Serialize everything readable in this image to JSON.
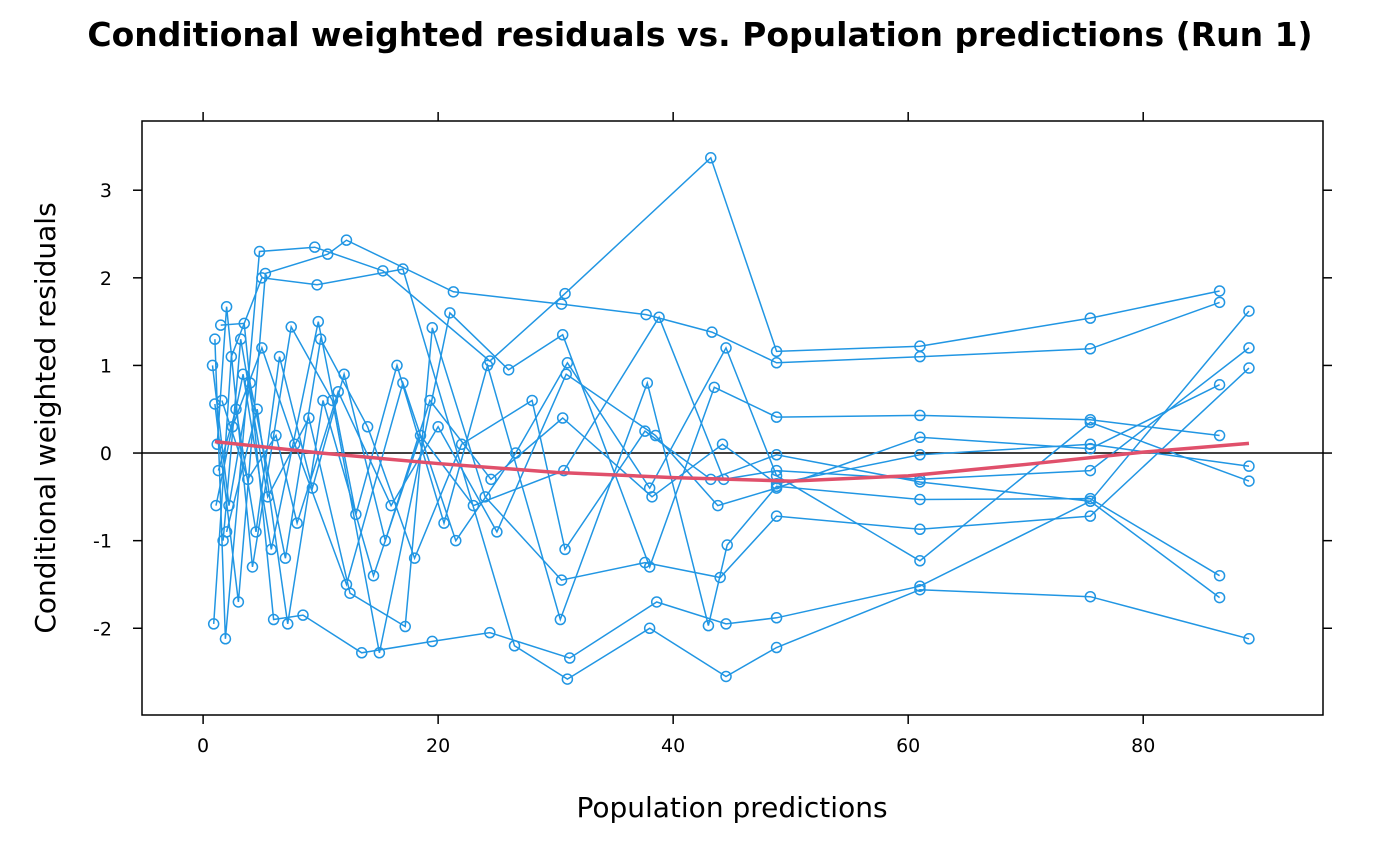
{
  "chart_data": {
    "type": "scatter",
    "title": "Conditional weighted residuals vs. Population predictions (Run 1)",
    "xlabel": "Population predictions",
    "ylabel": "Conditional weighted residuals",
    "xlim": [
      -5.2,
      95.3
    ],
    "ylim": [
      -2.99,
      3.79
    ],
    "xticks": [
      0,
      20,
      40,
      60,
      80
    ],
    "yticks": [
      -2,
      -1,
      0,
      1,
      2,
      3
    ],
    "grid": false,
    "reference_line_y": 0,
    "colors": {
      "points": "#2196e3",
      "smooth": "#e0506b",
      "reference": "#000000"
    },
    "series": [
      {
        "x": [
          1,
          1.9,
          4.8,
          9.5,
          15.3,
          24.4,
          30.8,
          43.2,
          48.8,
          61,
          75.5,
          86.5
        ],
        "y": [
          1.3,
          -2.12,
          2.3,
          2.35,
          2.08,
          1.05,
          1.82,
          3.37,
          1.16,
          1.22,
          1.54,
          1.85
        ]
      },
      {
        "x": [
          0.9,
          2.4,
          5,
          9.7,
          17,
          26.5,
          31,
          38,
          44.5,
          48.8,
          61,
          75.5,
          89
        ],
        "y": [
          -1.95,
          1.1,
          2.0,
          1.92,
          2.1,
          -2.2,
          -2.58,
          -2.0,
          -2.55,
          -2.22,
          -1.56,
          -1.64,
          -2.12
        ]
      },
      {
        "x": [
          1,
          3,
          5.3,
          10.6,
          12.2,
          21.3,
          30.5,
          37.7,
          43.3,
          48.8,
          61,
          75.5,
          86.5
        ],
        "y": [
          0.56,
          -1.7,
          2.05,
          2.27,
          2.43,
          1.84,
          1.7,
          1.58,
          1.38,
          1.03,
          1.1,
          1.19,
          1.72
        ]
      },
      {
        "x": [
          1.5,
          3.5,
          6,
          8.5,
          13.5,
          19.5,
          24.4,
          31.2,
          38.6,
          44.5,
          48.8,
          61,
          75.5,
          89
        ],
        "y": [
          1.46,
          1.48,
          -1.9,
          -1.85,
          -2.28,
          -2.15,
          -2.05,
          -2.34,
          -1.7,
          -1.95,
          -1.88,
          -1.52,
          -0.55,
          1.62
        ]
      },
      {
        "x": [
          1.2,
          2,
          4.2,
          7.5,
          11,
          15,
          21,
          26,
          30.6,
          38,
          43.5,
          48.8,
          61,
          75.5,
          86.5
        ],
        "y": [
          0.1,
          1.67,
          -1.3,
          1.44,
          0.6,
          -2.28,
          1.6,
          0.95,
          1.35,
          -1.3,
          0.75,
          0.41,
          0.43,
          0.38,
          0.2
        ]
      },
      {
        "x": [
          1.7,
          3.2,
          5.5,
          9,
          12.5,
          17.2,
          19.5,
          24,
          30.5,
          37.6,
          44,
          48.8,
          61,
          75.5,
          89
        ],
        "y": [
          -1.0,
          1.3,
          -0.5,
          0.4,
          -1.6,
          -1.98,
          1.43,
          -0.5,
          -1.45,
          -1.25,
          -1.42,
          -0.72,
          -0.87,
          -0.72,
          0.97
        ]
      },
      {
        "x": [
          0.8,
          2.2,
          4,
          7,
          10,
          14,
          18,
          22,
          28,
          30.8,
          37.6,
          43.2,
          48.8,
          61,
          75.5,
          86.5
        ],
        "y": [
          1.0,
          -0.6,
          0.8,
          -1.2,
          1.3,
          0.3,
          -1.2,
          0.1,
          0.6,
          -1.1,
          0.25,
          -0.3,
          -0.02,
          -0.33,
          -0.55,
          -1.65
        ]
      },
      {
        "x": [
          1.3,
          2.8,
          4.5,
          6.5,
          9.3,
          12,
          15.5,
          19.3,
          24.5,
          30.6,
          38.2,
          44.2,
          48.8,
          61,
          75.5,
          89
        ],
        "y": [
          -0.2,
          0.5,
          -0.9,
          1.1,
          -0.4,
          0.9,
          -1.0,
          0.6,
          -0.3,
          0.4,
          -0.5,
          0.1,
          -0.35,
          -0.02,
          0.1,
          -0.15
        ]
      },
      {
        "x": [
          1.6,
          3.8,
          6.2,
          8,
          11.5,
          16,
          20,
          25,
          30.9,
          38.5,
          43.8,
          48.8,
          61,
          75.5,
          86.5
        ],
        "y": [
          0.6,
          -0.3,
          0.2,
          -0.8,
          0.7,
          -0.6,
          0.3,
          -0.9,
          0.9,
          0.2,
          -0.6,
          -0.4,
          0.18,
          0.05,
          0.78
        ]
      },
      {
        "x": [
          2.5,
          5,
          7.8,
          12.2,
          17,
          21.5,
          26.6,
          31,
          38,
          44.5,
          48.8,
          61,
          75.5,
          89
        ],
        "y": [
          0.3,
          1.2,
          0.1,
          -1.5,
          0.8,
          -1.0,
          0.0,
          1.03,
          -0.4,
          1.2,
          -0.26,
          -1.23,
          0.35,
          -0.32
        ]
      },
      {
        "x": [
          1.1,
          3.4,
          5.8,
          9.8,
          13,
          16.5,
          20.5,
          24.2,
          30.4,
          37.8,
          43,
          44.6,
          48.8,
          61,
          75.5,
          86.5
        ],
        "y": [
          -0.6,
          0.9,
          -1.1,
          1.5,
          -0.7,
          1.0,
          -0.8,
          1.0,
          -1.9,
          0.8,
          -1.97,
          -1.05,
          -0.38,
          -0.53,
          -0.52,
          -1.4
        ]
      },
      {
        "x": [
          2,
          4.6,
          7.2,
          10.2,
          14.5,
          18.5,
          23,
          30.7,
          38.8,
          44.3,
          48.8,
          61,
          75.5,
          89
        ],
        "y": [
          -0.9,
          0.5,
          -1.95,
          0.6,
          -1.4,
          0.2,
          -0.6,
          -0.2,
          1.55,
          -0.3,
          -0.2,
          -0.3,
          -0.2,
          1.2
        ]
      }
    ],
    "smooth": {
      "x": [
        1,
        10,
        20,
        30,
        40,
        50,
        60,
        70,
        80,
        89
      ],
      "y": [
        0.13,
        0.0,
        -0.12,
        -0.22,
        -0.28,
        -0.32,
        -0.26,
        -0.13,
        0.01,
        0.11
      ]
    }
  }
}
